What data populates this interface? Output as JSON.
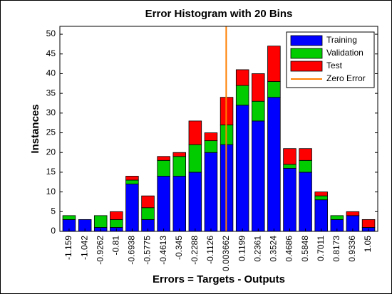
{
  "chart_data": {
    "type": "bar",
    "stacked": true,
    "title": "Error Histogram with 20 Bins",
    "x_label": "Errors = Targets - Outputs",
    "y_label": "Instances",
    "x": [
      -1.159,
      -1.042,
      -0.9262,
      -0.81,
      -0.6938,
      -0.5775,
      -0.4613,
      -0.345,
      -0.2288,
      -0.1126,
      0.003662,
      0.1199,
      0.2361,
      0.3524,
      0.4686,
      0.5848,
      0.7011,
      0.8173,
      0.9336,
      1.05
    ],
    "series": [
      {
        "name": "Training",
        "color": "#0000ff",
        "values": [
          3,
          3,
          1,
          1,
          12,
          3,
          14,
          14,
          15,
          20,
          22,
          32,
          28,
          34,
          16,
          15,
          8,
          3,
          4,
          1
        ]
      },
      {
        "name": "Validation",
        "color": "#00cc00",
        "values": [
          1,
          0,
          3,
          2,
          1,
          3,
          4,
          5,
          7,
          3,
          5,
          5,
          5,
          4,
          1,
          3,
          1,
          1,
          0,
          0
        ]
      },
      {
        "name": "Test",
        "color": "#ff0000",
        "values": [
          0,
          0,
          0,
          2,
          1,
          3,
          1,
          1,
          6,
          2,
          7,
          4,
          7,
          9,
          4,
          3,
          1,
          0,
          1,
          2
        ]
      }
    ],
    "zero_error": {
      "name": "Zero Error",
      "color": "#ff8000",
      "x": 0
    },
    "xlim": [
      -1.227,
      1.118
    ],
    "ylim": [
      0,
      52
    ],
    "yticks": [
      0,
      5,
      10,
      15,
      20,
      25,
      30,
      35,
      40,
      45,
      50
    ],
    "legend": "upper right"
  }
}
